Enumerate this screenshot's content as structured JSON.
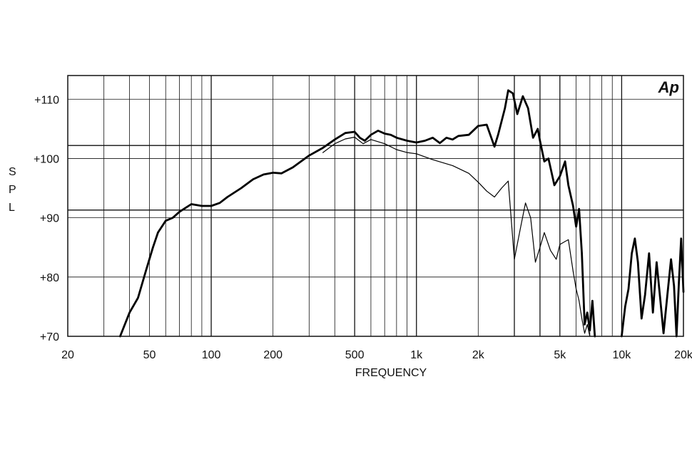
{
  "chart_data": {
    "type": "line",
    "title": "",
    "xlabel": "FREQUENCY",
    "ylabel": "S P L",
    "x_scale": "log",
    "xlim": [
      20,
      20000
    ],
    "ylim": [
      70,
      114
    ],
    "grid": true,
    "logo": "Ap",
    "x_ticks": [
      {
        "value": 20,
        "label": "20"
      },
      {
        "value": 50,
        "label": "50"
      },
      {
        "value": 100,
        "label": "100"
      },
      {
        "value": 200,
        "label": "200"
      },
      {
        "value": 500,
        "label": "500"
      },
      {
        "value": 1000,
        "label": "1k"
      },
      {
        "value": 2000,
        "label": "2k"
      },
      {
        "value": 5000,
        "label": "5k"
      },
      {
        "value": 10000,
        "label": "10k"
      },
      {
        "value": 20000,
        "label": "20k"
      }
    ],
    "y_ticks": [
      {
        "value": 70,
        "label": "+70"
      },
      {
        "value": 80,
        "label": "+80"
      },
      {
        "value": 90,
        "label": "+90"
      },
      {
        "value": 100,
        "label": "+100"
      },
      {
        "value": 110,
        "label": "+110"
      }
    ],
    "reference_lines": [
      102.2,
      91.3
    ],
    "series": [
      {
        "name": "",
        "style": "thick",
        "points": [
          [
            36,
            70
          ],
          [
            40,
            74
          ],
          [
            44,
            76.5
          ],
          [
            48,
            81
          ],
          [
            52,
            85
          ],
          [
            55,
            87.5
          ],
          [
            60,
            89.5
          ],
          [
            65,
            90
          ],
          [
            70,
            91
          ],
          [
            80,
            92.3
          ],
          [
            90,
            92
          ],
          [
            100,
            92
          ],
          [
            110,
            92.5
          ],
          [
            120,
            93.5
          ],
          [
            140,
            95
          ],
          [
            160,
            96.5
          ],
          [
            180,
            97.3
          ],
          [
            200,
            97.6
          ],
          [
            220,
            97.5
          ],
          [
            250,
            98.5
          ],
          [
            300,
            100.5
          ],
          [
            350,
            101.8
          ],
          [
            400,
            103.2
          ],
          [
            450,
            104.3
          ],
          [
            500,
            104.5
          ],
          [
            530,
            103.5
          ],
          [
            560,
            103
          ],
          [
            600,
            104
          ],
          [
            650,
            104.7
          ],
          [
            700,
            104.2
          ],
          [
            750,
            104
          ],
          [
            800,
            103.5
          ],
          [
            900,
            103
          ],
          [
            1000,
            102.7
          ],
          [
            1100,
            103
          ],
          [
            1200,
            103.5
          ],
          [
            1300,
            102.6
          ],
          [
            1400,
            103.5
          ],
          [
            1500,
            103.2
          ],
          [
            1600,
            103.8
          ],
          [
            1800,
            104
          ],
          [
            2000,
            105.5
          ],
          [
            2200,
            105.7
          ],
          [
            2400,
            102
          ],
          [
            2500,
            104
          ],
          [
            2700,
            108.5
          ],
          [
            2800,
            111.5
          ],
          [
            2950,
            111
          ],
          [
            3100,
            107.5
          ],
          [
            3300,
            110.5
          ],
          [
            3500,
            108.5
          ],
          [
            3700,
            103.5
          ],
          [
            3900,
            105
          ],
          [
            4000,
            103
          ],
          [
            4200,
            99.5
          ],
          [
            4400,
            100
          ],
          [
            4700,
            95.5
          ],
          [
            5000,
            97
          ],
          [
            5300,
            99.5
          ],
          [
            5500,
            95.5
          ],
          [
            5800,
            92
          ],
          [
            6000,
            88.5
          ],
          [
            6200,
            91.5
          ],
          [
            6400,
            84
          ],
          [
            6600,
            72
          ],
          [
            6800,
            74
          ],
          [
            7000,
            71
          ],
          [
            7200,
            76
          ],
          [
            7400,
            70
          ]
        ]
      },
      {
        "name": "",
        "style": "thick",
        "points": [
          [
            10000,
            70
          ],
          [
            10400,
            75
          ],
          [
            10800,
            78
          ],
          [
            11200,
            84
          ],
          [
            11600,
            86.5
          ],
          [
            12000,
            82.5
          ],
          [
            12500,
            73
          ],
          [
            13000,
            77
          ],
          [
            13600,
            84
          ],
          [
            14200,
            74
          ],
          [
            14800,
            82.5
          ],
          [
            15400,
            76.5
          ],
          [
            16000,
            70.5
          ],
          [
            16700,
            77
          ],
          [
            17400,
            83
          ],
          [
            18000,
            78.5
          ],
          [
            18500,
            70
          ],
          [
            19000,
            79
          ],
          [
            19500,
            86.5
          ],
          [
            20000,
            77.5
          ]
        ]
      },
      {
        "name": "",
        "style": "thin",
        "points": [
          [
            350,
            101
          ],
          [
            400,
            102.5
          ],
          [
            450,
            103.3
          ],
          [
            500,
            103.6
          ],
          [
            550,
            102.5
          ],
          [
            600,
            103.2
          ],
          [
            700,
            102.5
          ],
          [
            800,
            101.5
          ],
          [
            900,
            101
          ],
          [
            1000,
            100.8
          ],
          [
            1200,
            99.8
          ],
          [
            1500,
            98.8
          ],
          [
            1800,
            97.5
          ],
          [
            2000,
            96
          ],
          [
            2200,
            94.5
          ],
          [
            2400,
            93.5
          ],
          [
            2600,
            95
          ],
          [
            2800,
            96.2
          ],
          [
            3000,
            83
          ],
          [
            3200,
            88
          ],
          [
            3400,
            92.5
          ],
          [
            3600,
            90
          ],
          [
            3800,
            82.5
          ],
          [
            4000,
            85
          ],
          [
            4200,
            87.5
          ],
          [
            4500,
            84.5
          ],
          [
            4800,
            83
          ],
          [
            5000,
            85.5
          ],
          [
            5300,
            86
          ],
          [
            5500,
            86.3
          ],
          [
            5800,
            81
          ],
          [
            6000,
            78
          ],
          [
            6200,
            76
          ],
          [
            6400,
            73
          ],
          [
            6600,
            70.5
          ],
          [
            6800,
            72
          ],
          [
            7000,
            70
          ]
        ]
      }
    ]
  }
}
